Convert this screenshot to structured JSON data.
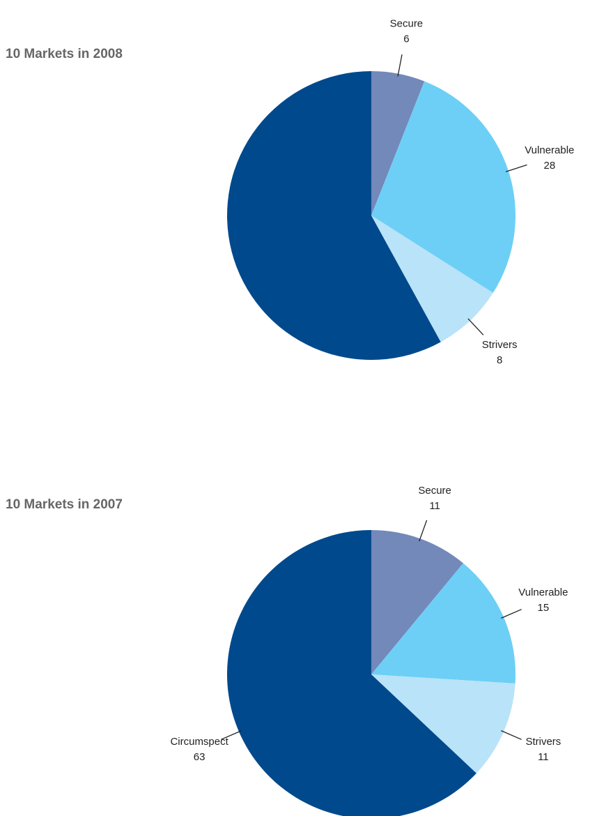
{
  "chart_data": [
    {
      "type": "pie",
      "title": "10 Markets in 2008",
      "categories": [
        "Secure",
        "Vulnerable",
        "Strivers",
        null
      ],
      "values": [
        6,
        28,
        8,
        58
      ],
      "colors": [
        "#7289b9",
        "#6dcff6",
        "#b9e3f8",
        "#00498c"
      ]
    },
    {
      "type": "pie",
      "title": "10 Markets in 2007",
      "categories": [
        "Secure",
        "Vulnerable",
        "Strivers",
        "Circumspect"
      ],
      "values": [
        11,
        15,
        11,
        63
      ],
      "colors": [
        "#7289b9",
        "#6dcff6",
        "#b9e3f8",
        "#00498c"
      ]
    }
  ]
}
